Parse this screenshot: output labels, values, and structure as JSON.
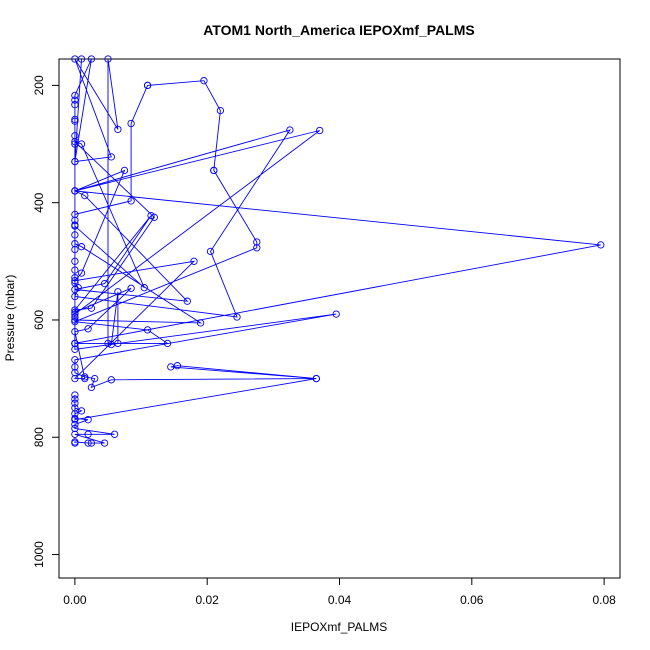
{
  "chart_data": {
    "type": "line",
    "title": "ATOM1 North_America IEPOXmf_PALMS",
    "xlabel": "IEPOXmf_PALMS",
    "ylabel": "Pressure (mbar)",
    "xlim": [
      -0.0024,
      0.0824
    ],
    "ylim": [
      1040,
      155
    ],
    "y_reversed": true,
    "grid": false,
    "legend": "none",
    "marker": "open-circle",
    "line_color": "#0000ff",
    "x_ticks": [
      0.0,
      0.02,
      0.04,
      0.06,
      0.08
    ],
    "x_tick_labels": [
      "0.00",
      "0.02",
      "0.04",
      "0.06",
      "0.08"
    ],
    "y_ticks": [
      200,
      400,
      600,
      800,
      1000
    ],
    "y_tick_labels": [
      "200",
      "400",
      "600",
      "800",
      "1000"
    ],
    "series": [
      {
        "points": [
          [
            0.0,
            810
          ],
          [
            0.0,
            808
          ],
          [
            0.002,
            810
          ],
          [
            0.0025,
            810
          ],
          [
            0.0045,
            810
          ],
          [
            0.0,
            795
          ],
          [
            0.002,
            795
          ],
          [
            0.006,
            795
          ],
          [
            0.0,
            785
          ],
          [
            0.0,
            778
          ],
          [
            0.002,
            770
          ],
          [
            0.0,
            768
          ],
          [
            0.0,
            760
          ],
          [
            0.001,
            755
          ],
          [
            0.0,
            750
          ],
          [
            0.0,
            742
          ],
          [
            0.0,
            735
          ],
          [
            0.0,
            728
          ],
          [
            0.0,
            770
          ],
          [
            0.0365,
            700
          ],
          [
            0.0145,
            680
          ],
          [
            0.0155,
            678
          ],
          [
            0.0365,
            700
          ],
          [
            0.0055,
            702
          ],
          [
            0.0025,
            715
          ],
          [
            0.003,
            700
          ],
          [
            0.0015,
            697
          ],
          [
            0.0,
            690
          ],
          [
            0.0,
            680
          ],
          [
            0.0,
            668
          ],
          [
            0.0395,
            590
          ],
          [
            0.0,
            650
          ],
          [
            0.0,
            640
          ],
          [
            0.0795,
            472
          ],
          [
            0.0,
            380
          ],
          [
            0.0,
            640
          ],
          [
            0.014,
            640
          ],
          [
            0.011,
            617
          ],
          [
            0.0,
            603
          ],
          [
            0.0275,
            477
          ],
          [
            0.0275,
            467
          ],
          [
            0.021,
            345
          ],
          [
            0.021,
            345
          ],
          [
            0.022,
            243
          ],
          [
            0.0195,
            192
          ],
          [
            0.011,
            200
          ],
          [
            0.011,
            200
          ],
          [
            0.0085,
            265
          ],
          [
            0.0085,
            397
          ],
          [
            0.0,
            420
          ],
          [
            0.0,
            430
          ],
          [
            0.0,
            438
          ],
          [
            0.0,
            455
          ],
          [
            0.0,
            480
          ],
          [
            0.0,
            500
          ],
          [
            0.0,
            515
          ],
          [
            0.0,
            528
          ],
          [
            0.0,
            537
          ],
          [
            0.0005,
            545
          ],
          [
            0.0,
            560
          ],
          [
            0.0245,
            595
          ],
          [
            0.0205,
            483
          ],
          [
            0.0325,
            276
          ],
          [
            0.0,
            380
          ],
          [
            0.037,
            277
          ],
          [
            0.0,
            590
          ],
          [
            0.0,
            595
          ],
          [
            0.0,
            600
          ],
          [
            0.019,
            605
          ],
          [
            0.001,
            475
          ],
          [
            0.0,
            470
          ],
          [
            0.0,
            440
          ],
          [
            0.0105,
            545
          ],
          [
            0.001,
            300
          ],
          [
            0.0,
            296
          ],
          [
            0.012,
            425
          ],
          [
            0.0025,
            580
          ],
          [
            0.0,
            583
          ],
          [
            0.0115,
            422
          ],
          [
            0.0045,
            538
          ],
          [
            0.0,
            548
          ],
          [
            0.017,
            568
          ],
          [
            0.0015,
            388
          ],
          [
            0.0,
            380
          ],
          [
            0.0075,
            345
          ],
          [
            0.001,
            520
          ],
          [
            0.0,
            533
          ],
          [
            0.018,
            500
          ],
          [
            0.0,
            700
          ],
          [
            0.0015,
            700
          ],
          [
            0.0,
            620
          ],
          [
            0.002,
            615
          ],
          [
            0.0085,
            546
          ],
          [
            0.0,
            587
          ],
          [
            0.0,
            300
          ],
          [
            0.0,
            286
          ],
          [
            0.0,
            261
          ],
          [
            0.0,
            258
          ],
          [
            0.0,
            233
          ],
          [
            0.0,
            225
          ],
          [
            0.0,
            217
          ],
          [
            0.0025,
            155
          ],
          [
            0.0,
            330
          ],
          [
            0.001,
            155
          ],
          [
            0.0,
            330
          ],
          [
            0.0055,
            322
          ],
          [
            0.0,
            155
          ],
          [
            0.0065,
            275
          ],
          [
            0.005,
            155
          ],
          [
            0.005,
            640
          ],
          [
            0.0055,
            642
          ],
          [
            0.0065,
            552
          ],
          [
            0.0065,
            640
          ],
          [
            0.0,
            640
          ]
        ]
      }
    ]
  }
}
